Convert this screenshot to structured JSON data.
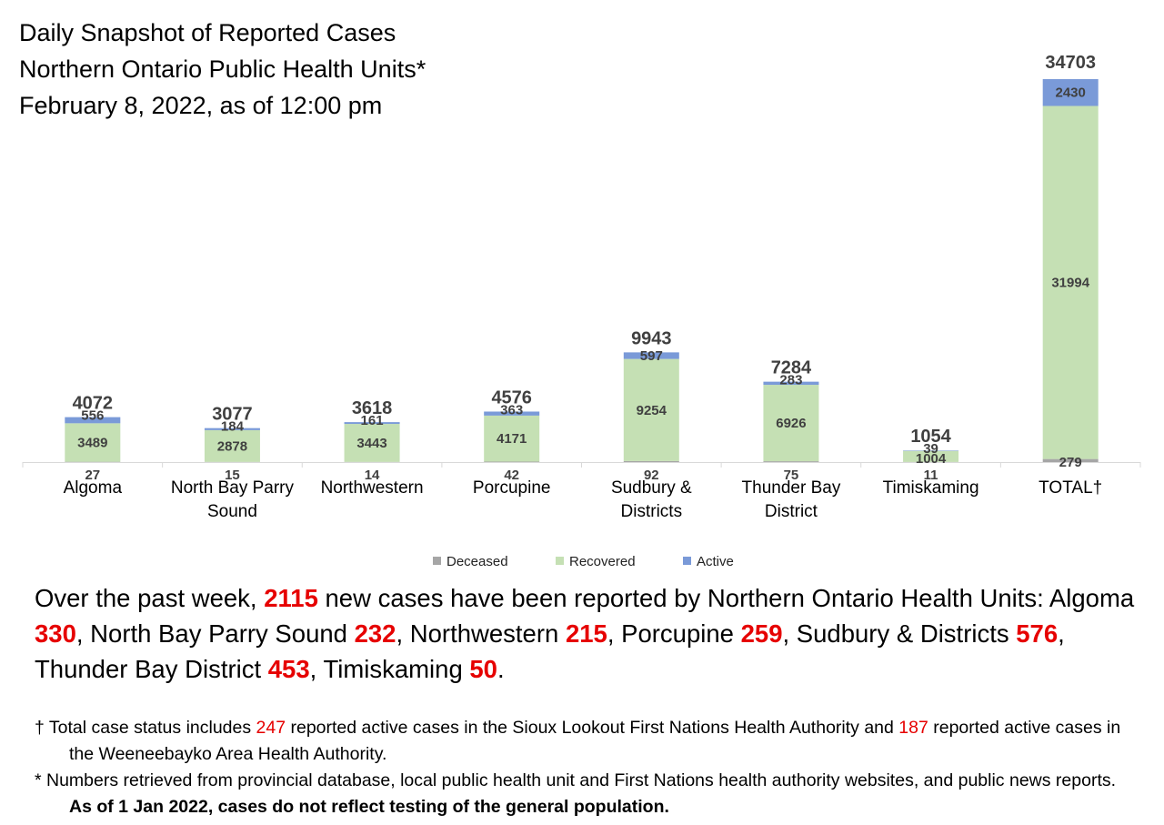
{
  "title": {
    "line1": "Daily Snapshot of Reported Cases",
    "line2": "Northern Ontario Public Health Units*",
    "line3": "February 8, 2022, as of 12:00 pm"
  },
  "colors": {
    "deceased": "#a6a6a6",
    "recovered": "#c5e0b4",
    "active": "#7a9ad8",
    "highlight": "#e60000"
  },
  "chart_data": {
    "type": "bar",
    "stacked": true,
    "categories": [
      "Algoma",
      "North Bay Parry Sound",
      "Northwestern",
      "Porcupine",
      "Sudbury & Districts",
      "Thunder Bay District",
      "Timiskaming",
      "TOTAL†"
    ],
    "category_lines": [
      [
        "Algoma"
      ],
      [
        "North Bay Parry",
        "Sound"
      ],
      [
        "Northwestern"
      ],
      [
        "Porcupine"
      ],
      [
        "Sudbury &",
        "Districts"
      ],
      [
        "Thunder Bay",
        "District"
      ],
      [
        "Timiskaming"
      ],
      [
        "TOTAL†"
      ]
    ],
    "series": [
      {
        "name": "Deceased",
        "values": [
          27,
          15,
          14,
          42,
          92,
          75,
          11,
          279
        ]
      },
      {
        "name": "Recovered",
        "values": [
          3489,
          2878,
          3443,
          4171,
          9254,
          6926,
          1004,
          31994
        ]
      },
      {
        "name": "Active",
        "values": [
          556,
          184,
          161,
          363,
          597,
          283,
          39,
          2430
        ]
      }
    ],
    "totals": [
      4072,
      3077,
      3618,
      4576,
      9943,
      7284,
      1054,
      34703
    ],
    "ylim": [
      0,
      34703
    ],
    "grid": false,
    "legend_position": "bottom"
  },
  "legend": [
    "Deceased",
    "Recovered",
    "Active"
  ],
  "summary": {
    "p1": "Over the past week, ",
    "total_new": "2115",
    "p2": " new cases have been reported by Northern Ontario Health Units: Algoma ",
    "algoma": "330",
    "p3": ", North Bay Parry Sound ",
    "nbps": "232",
    "p4": ", Northwestern ",
    "northwestern": "215",
    "p5": ", Porcupine ",
    "porcupine": "259",
    "p6": ", Sudbury & Districts ",
    "sudbury": "576",
    "p7": ", Thunder Bay District ",
    "thunder_bay": "453",
    "p8": ", Timiskaming ",
    "timiskaming": "50",
    "p9": "."
  },
  "notes": {
    "n1_a": "† Total case status includes ",
    "n1_num1": "247",
    "n1_b": " reported active cases in the Sioux Lookout First Nations Health Authority and ",
    "n1_num2": "187",
    "n1_c": " reported active cases in the Weeneebayko Area Health Authority.",
    "n2_a": "* Numbers retrieved from provincial database, local public health unit and First Nations health authority websites, and public news reports. ",
    "n2_bold": "As of 1 Jan 2022, cases do not reflect testing of the general population."
  }
}
